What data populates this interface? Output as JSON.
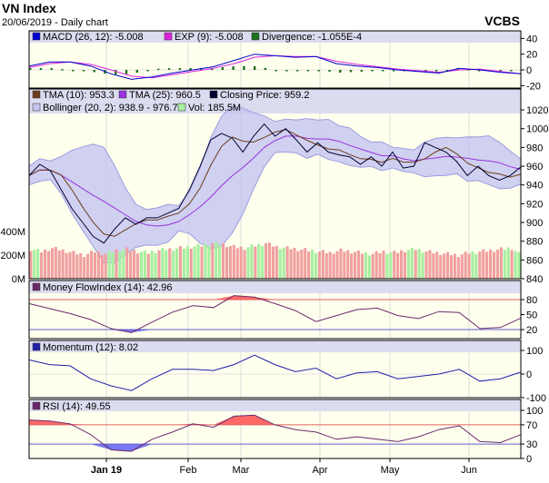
{
  "header": {
    "title": "VN Index",
    "subtitle": "20/06/2019 - Daily chart",
    "brand": "VCBS"
  },
  "colors": {
    "panel_bg": "#ffffee",
    "header_bg": "#dcdcf0",
    "macd": "#0000cc",
    "exp": "#dd22dd",
    "divergence": "#207020",
    "close": "#000033",
    "tma10": "#6b3d1c",
    "tma25": "#9933dd",
    "bollinger": "#c4c4f0",
    "vol_up": "#a8eea0",
    "vol_down": "#f0a0a0",
    "mfi": "#6a2a6a",
    "momentum": "#2020aa",
    "rsi": "#6a2a6a",
    "overbought": "#ff5050",
    "oversold": "#6060ee"
  },
  "chart_data": [
    {
      "type": "line",
      "name": "macd",
      "legend": [
        "MACD (26, 12): -5.008",
        "EXP (9): -5.008",
        "Divergence: -1.055E-4"
      ],
      "ylim": [
        -20,
        40
      ],
      "yticks": [
        "40",
        "20",
        "0",
        "-20"
      ],
      "series": [
        {
          "name": "MACD",
          "values": [
            5,
            10,
            10,
            5,
            -5,
            -12,
            -9,
            -4,
            0,
            4,
            12,
            20,
            18,
            16,
            17,
            8,
            5,
            3,
            0,
            -2,
            -4,
            2,
            0,
            -3,
            -5
          ]
        },
        {
          "name": "EXP",
          "values": [
            3,
            8,
            10,
            7,
            0,
            -8,
            -10,
            -6,
            -2,
            2,
            8,
            16,
            18,
            17,
            17,
            11,
            7,
            4,
            1,
            -1,
            -3,
            0,
            1,
            -2,
            -5
          ]
        }
      ]
    },
    {
      "type": "line",
      "name": "price",
      "legend": [
        "TMA (10): 953.3",
        "TMA (25): 960.5",
        "Closing Price: 959.2",
        "Bollinger (20, 2): 938.9 - 976.7",
        "Vol: 185.5M"
      ],
      "ylim": [
        840,
        1020
      ],
      "yticks": [
        "1020",
        "1000",
        "980",
        "960",
        "940",
        "920",
        "900",
        "880",
        "860",
        "840"
      ],
      "vol_ticks": [
        "400M",
        "200M",
        "0M"
      ],
      "close": [
        950,
        962,
        955,
        935,
        915,
        900,
        885,
        878,
        893,
        905,
        898,
        905,
        905,
        910,
        915,
        935,
        960,
        988,
        995,
        990,
        975,
        992,
        1005,
        992,
        1000,
        988,
        975,
        985,
        975,
        972,
        970,
        962,
        970,
        960,
        975,
        958,
        960,
        985,
        980,
        975,
        965,
        950,
        960,
        950,
        945,
        950,
        959.2
      ],
      "volume_m": [
        250,
        230,
        260,
        240,
        220,
        200,
        230,
        210,
        240,
        250,
        230,
        220,
        240,
        250,
        260,
        270,
        280,
        300,
        290,
        270,
        260,
        280,
        300,
        270,
        260,
        250,
        240,
        230,
        220,
        240,
        230,
        220,
        210,
        230,
        220,
        240,
        250,
        230,
        220,
        210,
        200,
        220,
        230,
        240,
        250,
        260,
        185.5
      ]
    },
    {
      "type": "line",
      "name": "mfi",
      "legend": [
        "Money FlowIndex (14): 42.96"
      ],
      "ylim": [
        0,
        100
      ],
      "yticks": [
        "80",
        "50",
        "20"
      ],
      "levels": [
        80,
        20
      ],
      "values": [
        72,
        62,
        52,
        40,
        22,
        14,
        35,
        55,
        68,
        64,
        88,
        85,
        72,
        58,
        36,
        48,
        60,
        63,
        48,
        42,
        56,
        54,
        22,
        24,
        42.96
      ]
    },
    {
      "type": "line",
      "name": "momentum",
      "legend": [
        "Momentum (12): 8.02"
      ],
      "ylim": [
        -100,
        100
      ],
      "yticks": [
        "100",
        "0",
        "-100"
      ],
      "values": [
        60,
        40,
        35,
        -20,
        -50,
        -70,
        -20,
        20,
        20,
        15,
        40,
        80,
        40,
        10,
        25,
        -20,
        5,
        10,
        -20,
        -10,
        0,
        20,
        -30,
        -20,
        8.02
      ]
    },
    {
      "type": "line",
      "name": "rsi",
      "legend": [
        "RSI (14): 49.55"
      ],
      "ylim": [
        0,
        100
      ],
      "yticks": [
        "100",
        "70",
        "30",
        "0"
      ],
      "levels": [
        70,
        30
      ],
      "values": [
        80,
        78,
        72,
        50,
        18,
        15,
        40,
        55,
        72,
        65,
        88,
        90,
        70,
        60,
        55,
        40,
        45,
        40,
        35,
        45,
        60,
        68,
        35,
        33,
        49.55
      ]
    }
  ],
  "x_ticks": [
    "Jan 19",
    "Feb",
    "Mar",
    "Apr",
    "May",
    "Jun"
  ]
}
